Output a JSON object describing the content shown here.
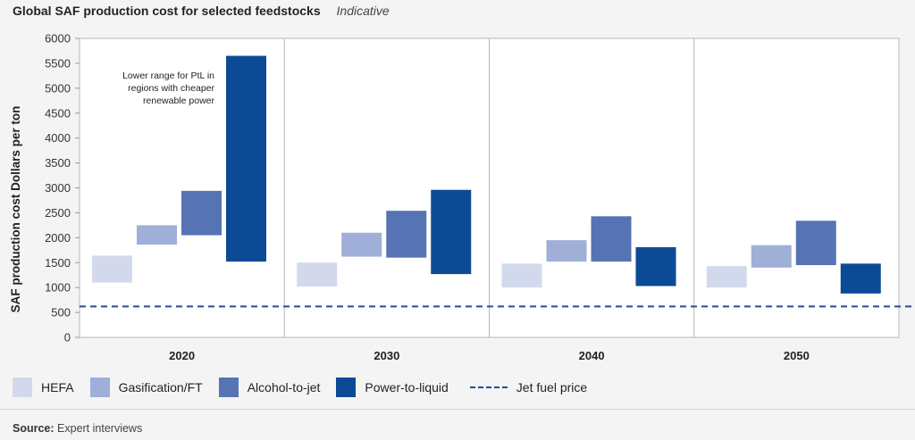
{
  "title": "Global SAF production cost for selected feedstocks",
  "subtitle": "Indicative",
  "source_label": "Source:",
  "source_text": "Expert interviews",
  "colors": {
    "HEFA": "#d3d9ec",
    "Gasification/FT": "#9fafd7",
    "Alcohol-to-jet": "#5674b4",
    "Power-to-liquid": "#0c4a96",
    "jet_fuel_line": "#1f4e9a"
  },
  "chart_data": {
    "type": "floating-bar",
    "title": "Global SAF production cost for selected feedstocks",
    "subtitle": "Indicative",
    "ylabel": "SAF production cost Dollars per ton",
    "xlabel": "",
    "ylim": [
      0,
      6000
    ],
    "yticks": [
      0,
      500,
      1000,
      1500,
      2000,
      2500,
      3000,
      3500,
      4000,
      4500,
      5000,
      5500,
      6000
    ],
    "categories": [
      "2020",
      "2030",
      "2040",
      "2050"
    ],
    "series": [
      {
        "name": "HEFA",
        "ranges": [
          [
            1100,
            1640
          ],
          [
            1020,
            1500
          ],
          [
            1000,
            1480
          ],
          [
            1000,
            1430
          ]
        ]
      },
      {
        "name": "Gasification/FT",
        "ranges": [
          [
            1860,
            2250
          ],
          [
            1620,
            2100
          ],
          [
            1520,
            1950
          ],
          [
            1400,
            1850
          ]
        ]
      },
      {
        "name": "Alcohol-to-jet",
        "ranges": [
          [
            2050,
            2940
          ],
          [
            1600,
            2540
          ],
          [
            1520,
            2430
          ],
          [
            1450,
            2340
          ]
        ]
      },
      {
        "name": "Power-to-liquid",
        "ranges": [
          [
            1520,
            5650
          ],
          [
            1270,
            2960
          ],
          [
            1030,
            1810
          ],
          [
            880,
            1480
          ]
        ]
      }
    ],
    "reference_line": {
      "name": "Jet fuel price",
      "value": 620
    },
    "annotation": {
      "text": [
        "Lower range for PtL in",
        "regions with cheaper",
        "renewable power"
      ],
      "category": "2020",
      "series": "Power-to-liquid"
    },
    "grid": false
  },
  "legend": [
    {
      "label": "HEFA",
      "kind": "box"
    },
    {
      "label": "Gasification/FT",
      "kind": "box"
    },
    {
      "label": "Alcohol-to-jet",
      "kind": "box"
    },
    {
      "label": "Power-to-liquid",
      "kind": "box"
    },
    {
      "label": "Jet fuel price",
      "kind": "dashed-line"
    }
  ]
}
